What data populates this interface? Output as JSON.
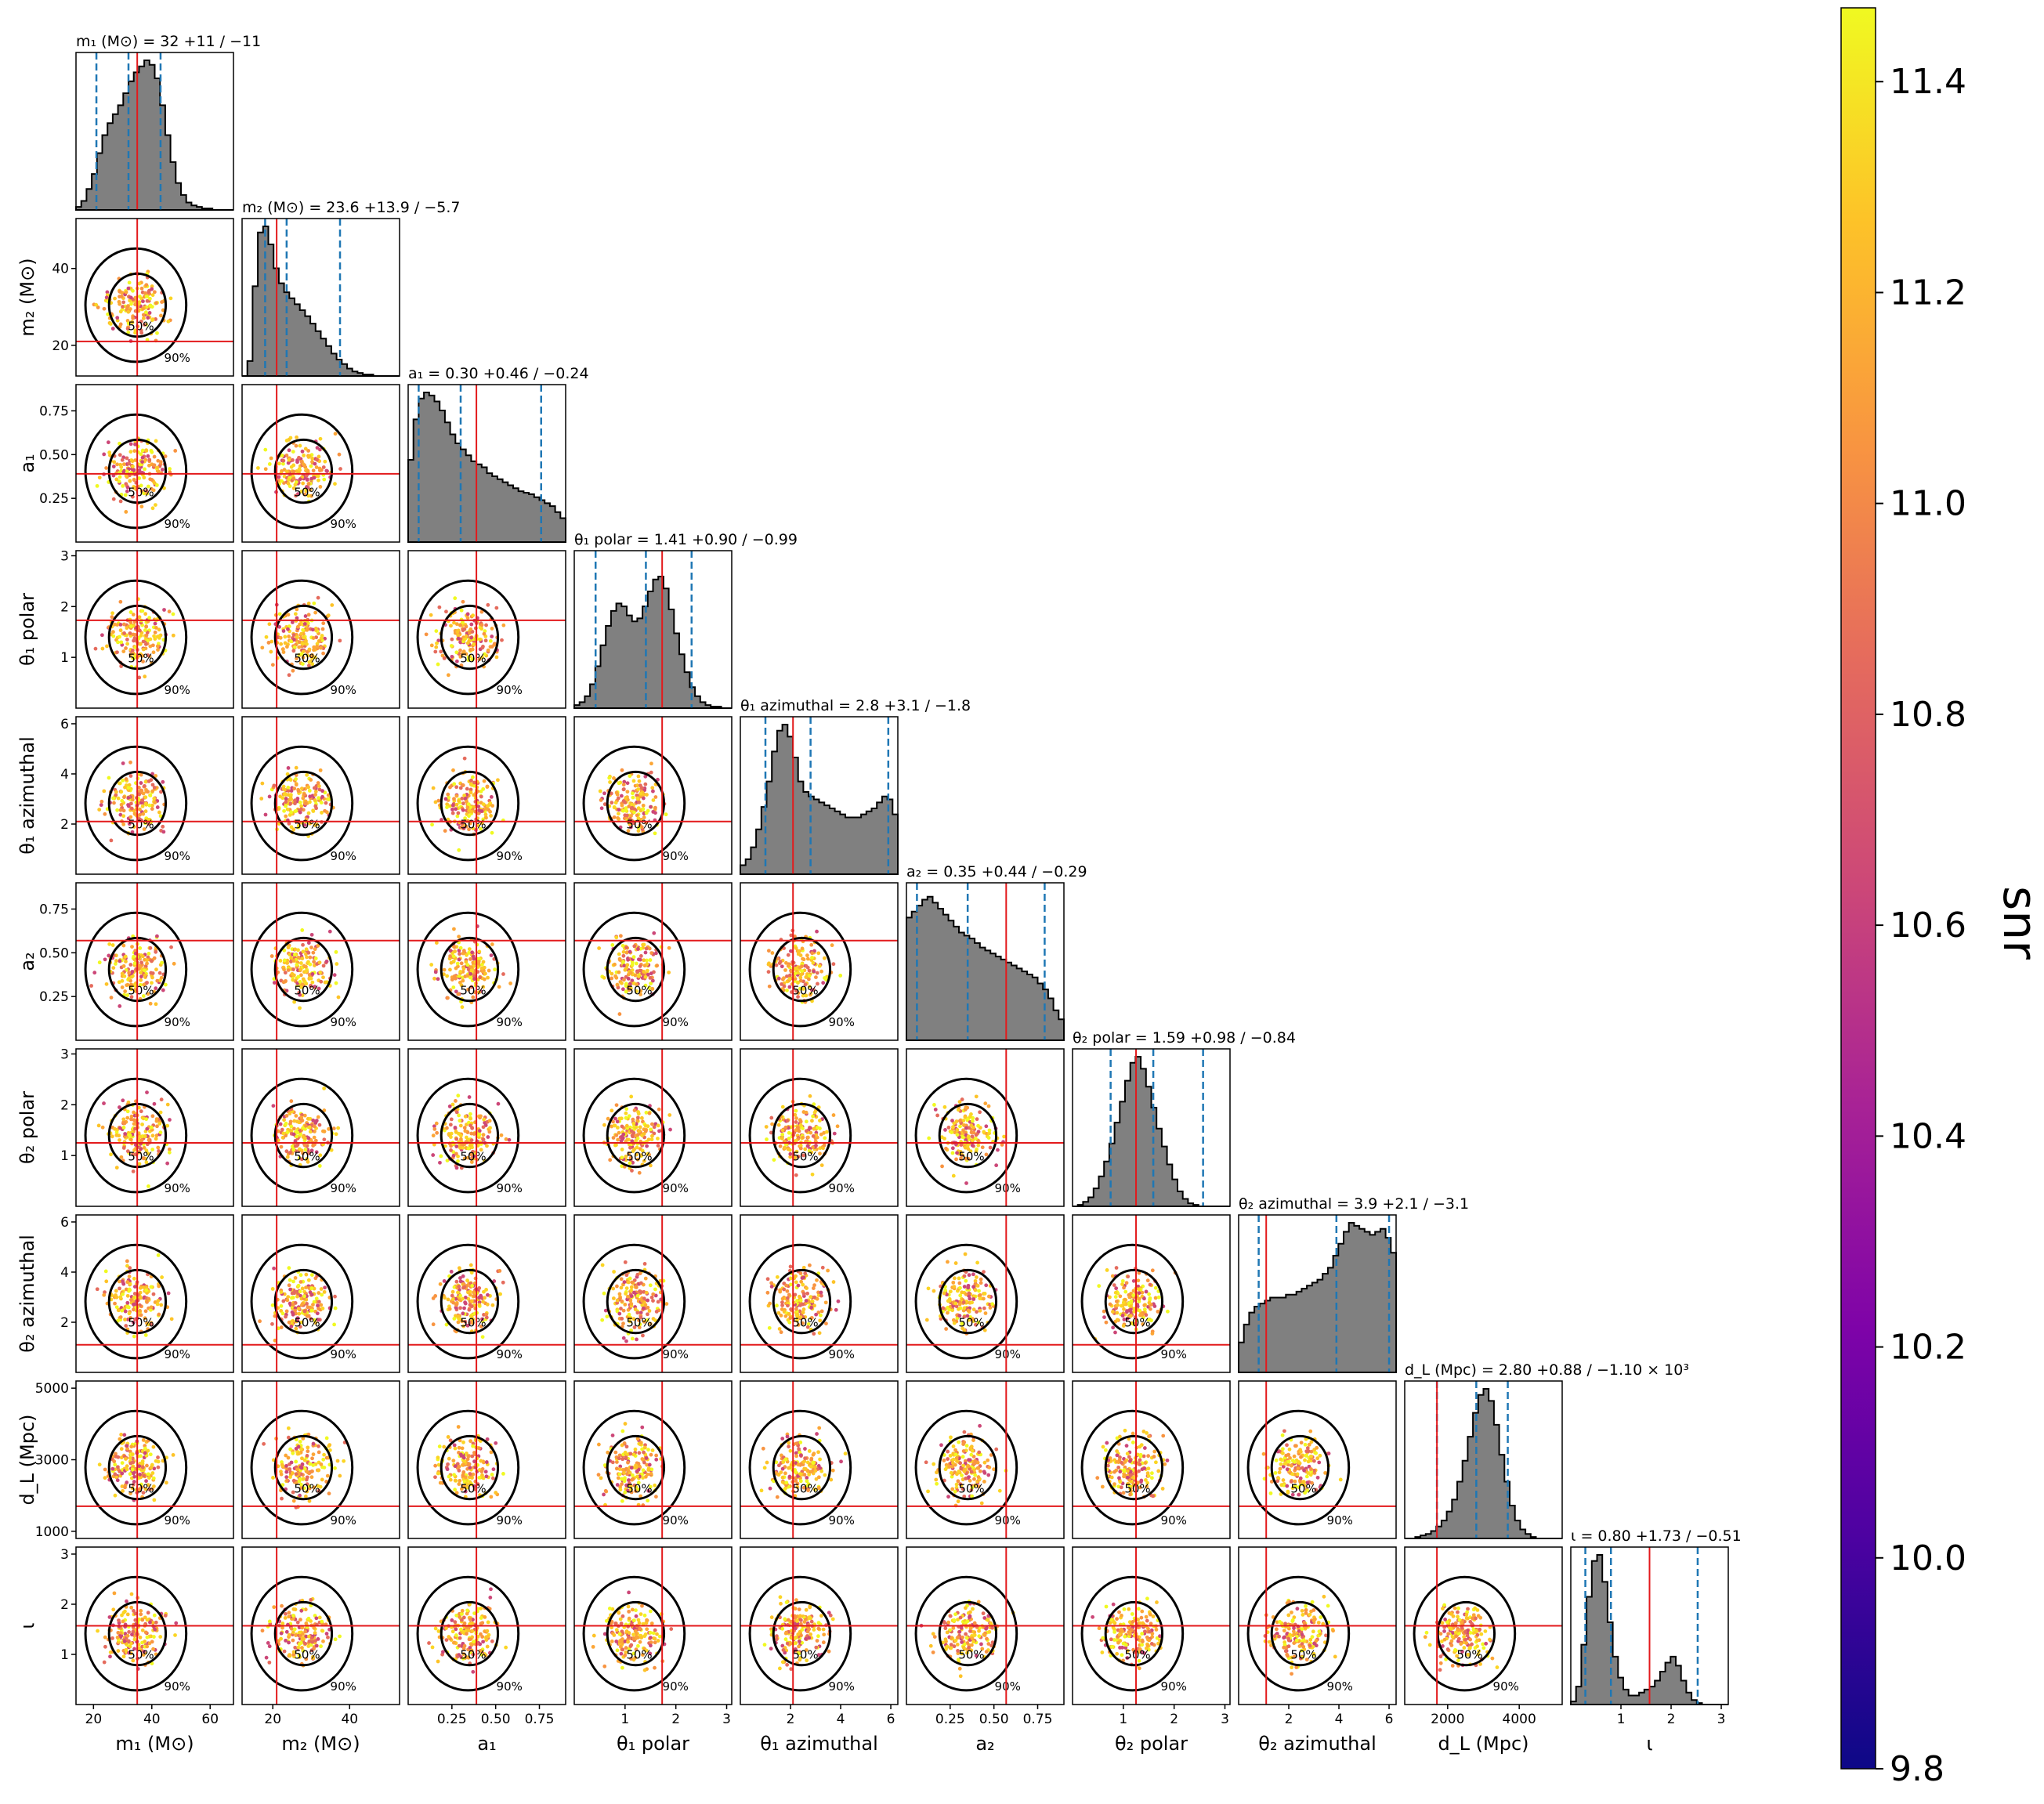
{
  "chart_data": {
    "type": "scatter",
    "layout": "corner-plot",
    "parameters": [
      {
        "key": "m1",
        "axis_label": "m₁ (M⊙)",
        "title": "m₁ (M⊙) = 32",
        "plus": "+11",
        "minus": "−11",
        "ticks": [
          "20",
          "40",
          "60"
        ],
        "tick_values": [
          20,
          40,
          60
        ],
        "range": [
          14,
          68
        ],
        "injected": 35,
        "ci": [
          21,
          32,
          43
        ]
      },
      {
        "key": "m2",
        "axis_label": "m₂ (M⊙)",
        "title": "m₂ (M⊙) = 23.6",
        "plus": "+13.9",
        "minus": "−5.7",
        "ticks": [
          "20",
          "40"
        ],
        "tick_values": [
          20,
          40
        ],
        "range": [
          12,
          53
        ],
        "injected": 21,
        "ci": [
          18,
          23.6,
          37.5
        ]
      },
      {
        "key": "a1",
        "axis_label": "a₁",
        "title": "a₁ = 0.30",
        "plus": "+0.46",
        "minus": "−0.24",
        "ticks": [
          "0.25",
          "0.50",
          "0.75"
        ],
        "tick_values": [
          0.25,
          0.5,
          0.75
        ],
        "range": [
          0,
          0.9
        ],
        "injected": 0.39,
        "ci": [
          0.06,
          0.3,
          0.76
        ]
      },
      {
        "key": "theta1p",
        "axis_label": "θ₁ polar",
        "title": "θ₁ polar = 1.41",
        "plus": "+0.90",
        "minus": "−0.99",
        "ticks": [
          "1",
          "2",
          "3"
        ],
        "tick_values": [
          1,
          2,
          3
        ],
        "range": [
          0,
          3.1
        ],
        "injected": 1.73,
        "ci": [
          0.42,
          1.41,
          2.31
        ]
      },
      {
        "key": "theta1a",
        "axis_label": "θ₁ azimuthal",
        "title": "θ₁ azimuthal = 2.8",
        "plus": "+3.1",
        "minus": "−1.8",
        "ticks": [
          "2",
          "4",
          "6"
        ],
        "tick_values": [
          2,
          4,
          6
        ],
        "range": [
          0,
          6.28
        ],
        "injected": 2.1,
        "ci": [
          1.0,
          2.8,
          5.9
        ]
      },
      {
        "key": "a2",
        "axis_label": "a₂",
        "title": "a₂ = 0.35",
        "plus": "+0.44",
        "minus": "−0.29",
        "ticks": [
          "0.25",
          "0.50",
          "0.75"
        ],
        "tick_values": [
          0.25,
          0.5,
          0.75
        ],
        "range": [
          0,
          0.9
        ],
        "injected": 0.57,
        "ci": [
          0.06,
          0.35,
          0.79
        ]
      },
      {
        "key": "theta2p",
        "axis_label": "θ₂ polar",
        "title": "θ₂ polar = 1.59",
        "plus": "+0.98",
        "minus": "−0.84",
        "ticks": [
          "1",
          "2",
          "3"
        ],
        "tick_values": [
          1,
          2,
          3
        ],
        "range": [
          0,
          3.1
        ],
        "injected": 1.25,
        "ci": [
          0.75,
          1.59,
          2.57
        ]
      },
      {
        "key": "theta2a",
        "axis_label": "θ₂ azimuthal",
        "title": "θ₂ azimuthal = 3.9",
        "plus": "+2.1",
        "minus": "−3.1",
        "ticks": [
          "2",
          "4",
          "6"
        ],
        "tick_values": [
          2,
          4,
          6
        ],
        "range": [
          0,
          6.28
        ],
        "injected": 1.1,
        "ci": [
          0.8,
          3.9,
          6.0
        ]
      },
      {
        "key": "dL",
        "axis_label": "d_L (Mpc)",
        "title": "d_L (Mpc) = 2.80",
        "plus": "+0.88",
        "minus": "−1.10",
        "suffix": "× 10³",
        "ticks": [
          "2000",
          "4000"
        ],
        "tick_values": [
          2000,
          4000
        ],
        "y_ticks": [
          "1000",
          "3000",
          "5000"
        ],
        "y_tick_values": [
          1000,
          3000,
          5000
        ],
        "range": [
          800,
          5200
        ],
        "injected": 1700,
        "ci": [
          1700,
          2800,
          3680
        ]
      },
      {
        "key": "iota",
        "axis_label": "ι",
        "title": "ι = 0.80",
        "plus": "+1.73",
        "minus": "−0.51",
        "ticks": [
          "1",
          "2",
          "3"
        ],
        "tick_values": [
          1,
          2,
          3
        ],
        "range": [
          0,
          3.14
        ],
        "injected": 1.57,
        "ci": [
          0.29,
          0.8,
          2.53
        ]
      }
    ],
    "histograms": {
      "m1": [
        2,
        6,
        14,
        24,
        38,
        50,
        58,
        64,
        70,
        78,
        86,
        92,
        96,
        100,
        97,
        88,
        70,
        50,
        32,
        18,
        10,
        5,
        3,
        2,
        1,
        1,
        0,
        0,
        0,
        0
      ],
      "m2": [
        0,
        10,
        60,
        96,
        100,
        88,
        72,
        62,
        56,
        52,
        48,
        44,
        40,
        35,
        30,
        25,
        20,
        15,
        11,
        8,
        5,
        3,
        2,
        1,
        1,
        0,
        0,
        0,
        0,
        0
      ],
      "a1": [
        55,
        82,
        96,
        100,
        98,
        94,
        88,
        80,
        72,
        66,
        62,
        58,
        54,
        52,
        50,
        46,
        44,
        42,
        40,
        38,
        36,
        34,
        33,
        32,
        30,
        28,
        26,
        24,
        20,
        16
      ],
      "theta1p": [
        2,
        4,
        8,
        16,
        28,
        42,
        55,
        65,
        70,
        68,
        62,
        58,
        60,
        68,
        78,
        86,
        88,
        80,
        66,
        50,
        36,
        24,
        14,
        8,
        4,
        2,
        1,
        1,
        0,
        0
      ],
      "theta1a": [
        6,
        10,
        18,
        30,
        45,
        62,
        82,
        96,
        100,
        92,
        78,
        62,
        55,
        52,
        50,
        48,
        46,
        44,
        42,
        40,
        38,
        38,
        38,
        40,
        42,
        44,
        48,
        52,
        50,
        40
      ],
      "a2": [
        82,
        86,
        90,
        94,
        96,
        92,
        88,
        84,
        80,
        76,
        72,
        70,
        68,
        65,
        62,
        60,
        58,
        56,
        54,
        52,
        50,
        48,
        46,
        44,
        42,
        38,
        34,
        28,
        20,
        14
      ],
      "theta2p": [
        0,
        1,
        3,
        6,
        12,
        20,
        30,
        42,
        56,
        70,
        84,
        96,
        100,
        92,
        80,
        66,
        52,
        40,
        28,
        18,
        10,
        5,
        2,
        1,
        0,
        0,
        0,
        0,
        0,
        0
      ],
      "theta2a": [
        20,
        32,
        40,
        44,
        46,
        48,
        50,
        50,
        50,
        52,
        52,
        54,
        56,
        58,
        60,
        62,
        66,
        70,
        78,
        86,
        94,
        100,
        98,
        96,
        94,
        92,
        94,
        96,
        90,
        80
      ],
      "dL": [
        0,
        0,
        1,
        2,
        3,
        5,
        8,
        12,
        18,
        26,
        38,
        52,
        68,
        84,
        96,
        100,
        92,
        76,
        56,
        38,
        22,
        12,
        6,
        3,
        1,
        0,
        0,
        0,
        0,
        0
      ],
      "iota": [
        2,
        12,
        40,
        72,
        96,
        100,
        82,
        55,
        32,
        18,
        10,
        6,
        6,
        8,
        10,
        12,
        16,
        22,
        28,
        32,
        26,
        16,
        8,
        3,
        1,
        0,
        0,
        0,
        0,
        0
      ]
    },
    "contour_levels": [
      "50%",
      "90%"
    ],
    "colorbar": {
      "label": "snr",
      "min": 9.8,
      "max": 11.47,
      "ticks": [
        "9.8",
        "10.0",
        "10.2",
        "10.4",
        "10.6",
        "10.8",
        "11.0",
        "11.2",
        "11.4"
      ],
      "tick_values": [
        9.8,
        10.0,
        10.2,
        10.4,
        10.6,
        10.8,
        11.0,
        11.2,
        11.4
      ],
      "colormap": "plasma"
    },
    "colors": {
      "histogram_fill": "#808080",
      "injection_line": "#e31a1c",
      "quantile_line": "#1f77b4",
      "contour": "#000000"
    }
  }
}
